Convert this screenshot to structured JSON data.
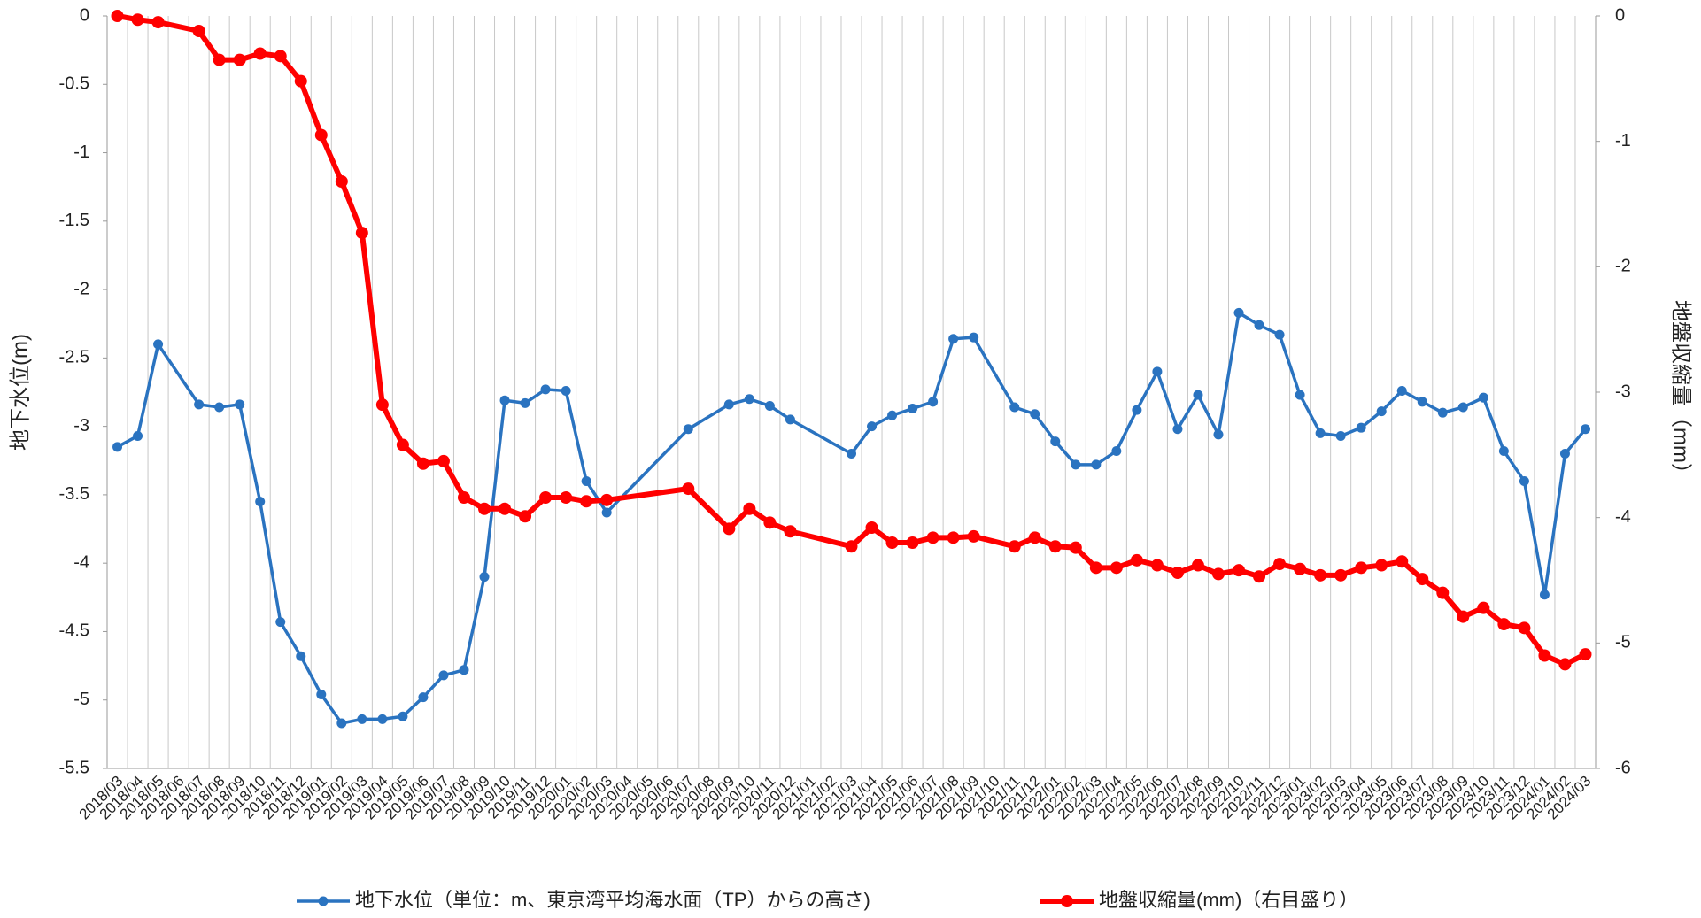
{
  "chart_data": {
    "type": "line",
    "categories": [
      "2018/03",
      "2018/04",
      "2018/05",
      "2018/06",
      "2018/07",
      "2018/08",
      "2018/09",
      "2018/10",
      "2018/11",
      "2018/12",
      "2019/01",
      "2019/02",
      "2019/03",
      "2019/04",
      "2019/05",
      "2019/06",
      "2019/07",
      "2019/08",
      "2019/09",
      "2019/10",
      "2019/11",
      "2019/12",
      "2020/01",
      "2020/02",
      "2020/03",
      "2020/04",
      "2020/05",
      "2020/06",
      "2020/07",
      "2020/08",
      "2020/09",
      "2020/10",
      "2020/11",
      "2020/12",
      "2021/01",
      "2021/02",
      "2021/03",
      "2021/04",
      "2021/05",
      "2021/06",
      "2021/07",
      "2021/08",
      "2021/09",
      "2021/10",
      "2021/11",
      "2021/12",
      "2022/01",
      "2022/02",
      "2022/03",
      "2022/04",
      "2022/05",
      "2022/06",
      "2022/07",
      "2022/08",
      "2022/09",
      "2022/10",
      "2022/11",
      "2022/12",
      "2023/01",
      "2023/02",
      "2023/03",
      "2023/04",
      "2023/05",
      "2023/06",
      "2023/07",
      "2023/08",
      "2023/09",
      "2023/10",
      "2023/11",
      "2023/12",
      "2024/01",
      "2024/02",
      "2024/03"
    ],
    "series": [
      {
        "name": "地下水位（単位：m、東京湾平均海水面（TP）からの高さ)",
        "color": "#2a73c0",
        "axis": "y",
        "values": [
          -3.15,
          -3.07,
          -2.4,
          null,
          -2.84,
          -2.86,
          -2.84,
          -3.55,
          -4.43,
          -4.68,
          -4.96,
          -5.17,
          -5.14,
          -5.14,
          -5.12,
          -4.98,
          -4.82,
          -4.78,
          -4.1,
          -2.81,
          -2.83,
          -2.73,
          -2.74,
          -3.4,
          -3.63,
          null,
          null,
          null,
          -3.02,
          null,
          -2.84,
          -2.8,
          -2.85,
          -2.95,
          null,
          null,
          -3.2,
          -3.0,
          -2.92,
          -2.87,
          -2.82,
          -2.36,
          -2.35,
          null,
          -2.86,
          -2.91,
          -3.11,
          -3.28,
          -3.28,
          -3.18,
          -2.88,
          -2.6,
          -3.02,
          -2.77,
          -3.06,
          -2.17,
          -2.26,
          -2.33,
          -2.77,
          -3.05,
          -3.07,
          -3.01,
          -2.89,
          -2.74,
          -2.82,
          -2.9,
          -2.86,
          -2.79,
          -3.18,
          -3.4,
          -4.23,
          -3.2,
          -3.02
        ]
      },
      {
        "name": "地盤収縮量(mm)（右目盛り）",
        "color": "#ff0000",
        "axis": "y2",
        "values": [
          0,
          -0.03,
          -0.05,
          null,
          -0.12,
          -0.35,
          -0.35,
          -0.3,
          -0.32,
          -0.52,
          -0.95,
          -1.32,
          -1.73,
          -3.1,
          -3.42,
          -3.57,
          -3.55,
          -3.84,
          -3.93,
          -3.93,
          -3.99,
          -3.84,
          -3.84,
          -3.87,
          -3.86,
          null,
          null,
          null,
          -3.77,
          null,
          -4.09,
          -3.93,
          -4.04,
          -4.11,
          null,
          null,
          -4.23,
          -4.08,
          -4.2,
          -4.2,
          -4.16,
          -4.16,
          -4.15,
          null,
          -4.23,
          -4.16,
          -4.23,
          -4.24,
          -4.4,
          -4.4,
          -4.34,
          -4.38,
          -4.44,
          -4.38,
          -4.45,
          -4.42,
          -4.47,
          -4.37,
          -4.41,
          -4.46,
          -4.46,
          -4.4,
          -4.38,
          -4.35,
          -4.49,
          -4.6,
          -4.79,
          -4.72,
          -4.85,
          -4.88,
          -5.1,
          -5.17,
          -5.09
        ]
      }
    ],
    "y_label": "地下水位(m)",
    "y2_label": "地盤収縮量（mm）",
    "ylim": [
      -5.5,
      0
    ],
    "yticks": [
      0,
      -0.5,
      -1,
      -1.5,
      -2,
      -2.5,
      -3,
      -3.5,
      -4,
      -4.5,
      -5,
      -5.5
    ],
    "y2lim": [
      -6,
      0
    ],
    "y2ticks": [
      0,
      -1,
      -2,
      -3,
      -4,
      -5,
      -6
    ],
    "connect_gaps": true,
    "grid": true,
    "legend": "bottom"
  }
}
